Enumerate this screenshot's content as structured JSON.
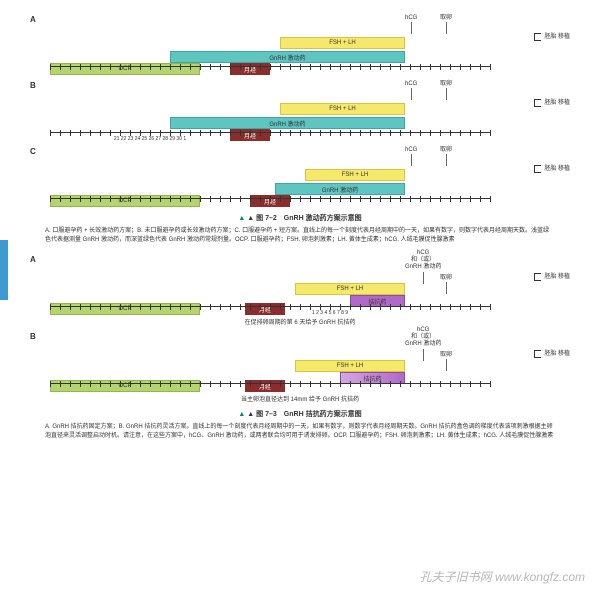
{
  "colors": {
    "ocp": "#b5d46f",
    "ocp_border": "#8fb84a",
    "gnrh_a": "#5ec5c1",
    "gnrh_a_border": "#3aa8a4",
    "fsh": "#f5e86b",
    "fsh_border": "#d4c83a",
    "menses": "#8b2d2d",
    "antag": "#b068c9",
    "antag_border": "#8e4aa8",
    "vbar": "#3d9bd1",
    "tri": "#00847c"
  },
  "labels": {
    "ocp": "OCP",
    "gnrh_a": "GnRH 激动药",
    "fsh": "FSH + LH",
    "menses": "月经",
    "hcg": "hCG",
    "hcg_or": "hCG\n和（或）\nGnRH 激动药",
    "retrieval": "取卵",
    "embryo": "胚胎\n移植",
    "antag": "拮抗药"
  },
  "fig72": {
    "title": "▲ 图 7–2　GnRH 激动药方案示意图",
    "desc": "A. 口服避孕药 + 长效激动药方案；B. 未口服避孕药或长效激动药方案；C. 口服避孕药 + 短方案。直线上的每一个刻度代表月经周期中的一天，如果有数字，则数字代表月经周期天数。浅蓝绿色代表据测量 GnRH 激动药，而深蓝绿色代表 GnRH 激动药常规剂量。OCP. 口服避孕药；FSH. 卵泡刺激素；LH. 黄体生成素；hCG. 人绒毛膜促性腺激素",
    "panelB_ticks": "21 22 23 24 25 26 27 28 29 30 1",
    "panels": [
      "A",
      "B",
      "C"
    ]
  },
  "fig73": {
    "title": "▲ 图 7–3　GnRH 拮抗药方案示意图",
    "desc": "A. GnRH 拮抗药固定方案；B. GnRH 拮抗药灵活方案。直线上的每一个刻度代表月经周期中的一天，如果有数字，则数字代表月经周期天数。GnRH 拮抗药盒色调的梯度代表该项刺激根据主卵泡直径来灵活调整启动时机。请注意，在这些方案中，hCG、GnRH 激动药，或两者联合均可用于诱发排卵。OCP. 口服避孕药；FSH. 卵泡刺激素；LH. 黄体生成素；hCG. 人绒毛膜促性腺激素",
    "panelA_sub": "在促排卵周期的第 6 天给予 GnRH 抗拮药",
    "panelA_ticks": "1 2 3 4 5 6 7 8 9",
    "panelB_sub": "当主卵泡直径达到 14mm 给予 GnRH 抗拮药",
    "panels": [
      "A",
      "B"
    ]
  },
  "watermark": "孔夫子旧书网\nwww.kongfz.com"
}
